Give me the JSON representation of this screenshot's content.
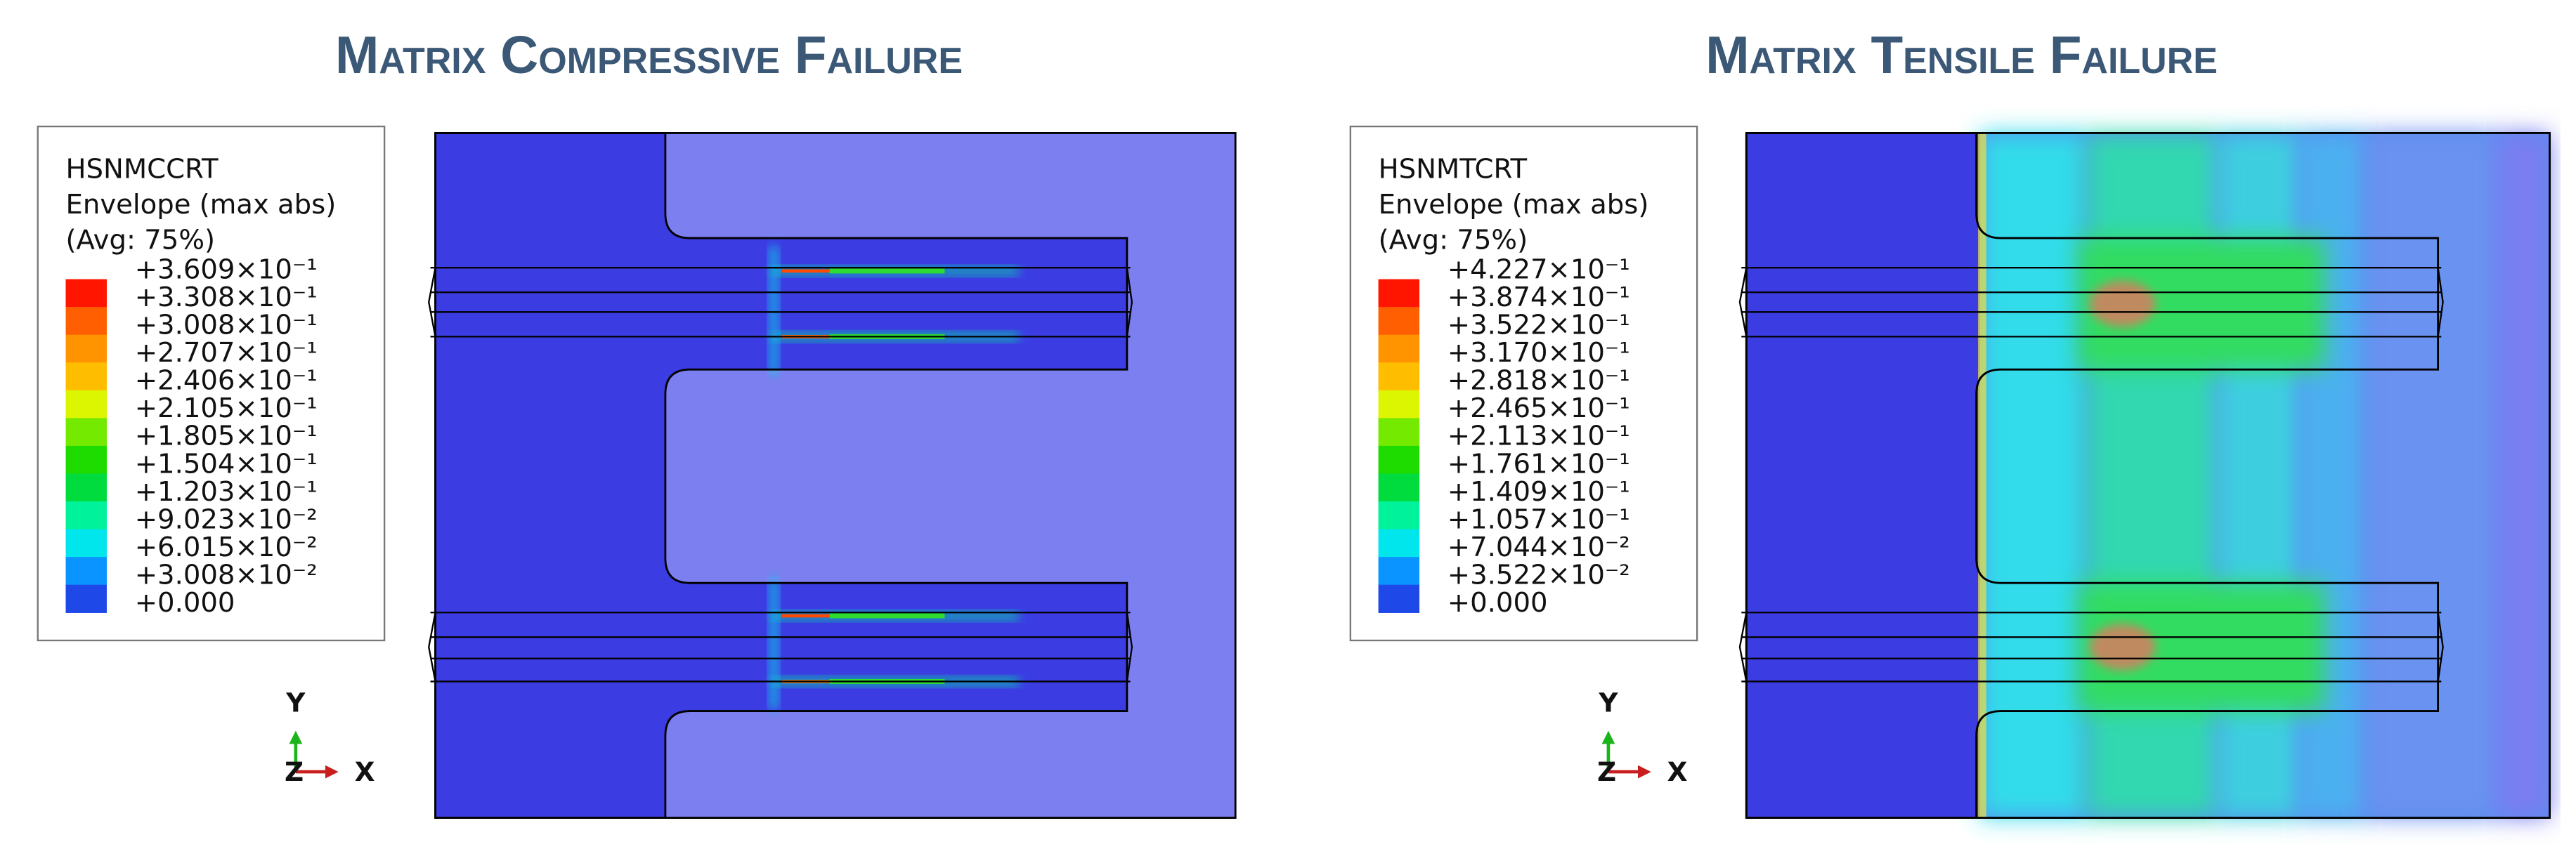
{
  "panels": [
    {
      "title": "Matrix Compressive Failure",
      "legend": {
        "lines": [
          "HSNMCCRT",
          "Envelope (max abs)",
          "(Avg: 75%)"
        ],
        "entries": [
          "+3.609×10⁻¹",
          "+3.308×10⁻¹",
          "+3.008×10⁻¹",
          "+2.707×10⁻¹",
          "+2.406×10⁻¹",
          "+2.105×10⁻¹",
          "+1.805×10⁻¹",
          "+1.504×10⁻¹",
          "+1.203×10⁻¹",
          "+9.023×10⁻²",
          "+6.015×10⁻²",
          "+3.008×10⁻²",
          "+0.000"
        ]
      },
      "axes": {
        "y": "Y",
        "z": "Z",
        "x": "X"
      }
    },
    {
      "title": "Matrix Tensile Failure",
      "legend": {
        "lines": [
          "HSNMTCRT",
          "Envelope (max abs)",
          "(Avg: 75%)"
        ],
        "entries": [
          "+4.227×10⁻¹",
          "+3.874×10⁻¹",
          "+3.522×10⁻¹",
          "+3.170×10⁻¹",
          "+2.818×10⁻¹",
          "+2.465×10⁻¹",
          "+2.113×10⁻¹",
          "+1.761×10⁻¹",
          "+1.409×10⁻¹",
          "+1.057×10⁻¹",
          "+7.044×10⁻²",
          "+3.522×10⁻²",
          "+0.000"
        ]
      },
      "axes": {
        "y": "Y",
        "z": "Z",
        "x": "X"
      }
    }
  ]
}
